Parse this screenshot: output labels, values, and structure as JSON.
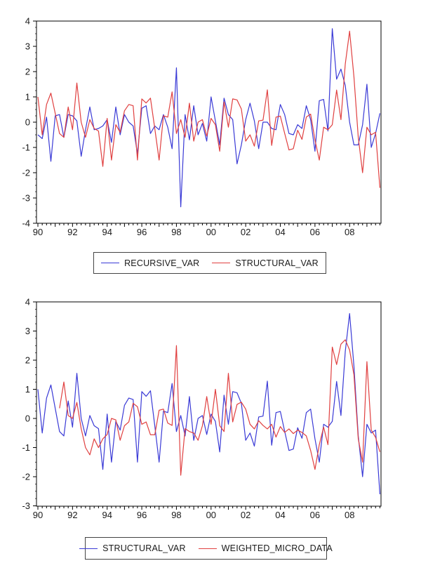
{
  "page": {
    "background": "#ffffff"
  },
  "colors": {
    "blue_series": "#3a3ad6",
    "red_series": "#e04040",
    "axis": "#000000",
    "text": "#1a1a1a"
  },
  "chart_data": [
    {
      "id": "top",
      "type": "line",
      "title": "",
      "xlabel": "",
      "ylabel": "",
      "x_start": "1990Q1",
      "x_end": "2009Q4",
      "frequency": "quarterly",
      "ylim": [
        -4,
        4
      ],
      "y_tick_labels": [
        "4",
        "3",
        "2",
        "1",
        "0",
        "-1",
        "-2",
        "-3",
        "-4"
      ],
      "x_tick_labels": [
        "90",
        "92",
        "94",
        "96",
        "98",
        "00",
        "02",
        "04",
        "06",
        "08"
      ],
      "grid": false,
      "legend_position": "bottom-center-boxed",
      "series": [
        {
          "name": "RECURSIVE_VAR",
          "color_key": "blue_series",
          "values": [
            -0.5,
            -0.65,
            0.2,
            -1.55,
            0.25,
            0.3,
            -0.6,
            0.3,
            0.25,
            0.05,
            -1.35,
            -0.3,
            0.6,
            -0.3,
            -0.25,
            -0.15,
            0.1,
            -0.8,
            0.6,
            -0.5,
            0.3,
            0.0,
            -0.15,
            -1.25,
            0.55,
            0.65,
            -0.45,
            -0.15,
            -0.3,
            0.3,
            -0.2,
            -1.05,
            2.15,
            -3.35,
            0.3,
            -0.7,
            0.65,
            -0.5,
            -0.05,
            -0.75,
            1.0,
            0.05,
            -0.9,
            0.95,
            0.3,
            0.1,
            -1.65,
            -0.9,
            0.1,
            0.75,
            0.05,
            -1.05,
            0.0,
            0.0,
            -0.25,
            -0.3,
            0.7,
            0.3,
            -0.45,
            -0.5,
            -0.1,
            -0.25,
            0.65,
            0.1,
            -1.15,
            0.85,
            0.9,
            -0.35,
            3.7,
            1.7,
            2.1,
            1.45,
            0.0,
            -0.9,
            -0.9,
            -0.1,
            1.5,
            -1.0,
            -0.45,
            0.35
          ]
        },
        {
          "name": "STRUCTURAL_VAR",
          "color_key": "red_series",
          "values": [
            1.0,
            -0.5,
            0.7,
            1.15,
            0.35,
            -0.45,
            -0.6,
            0.6,
            -0.3,
            1.55,
            0.0,
            -0.6,
            0.1,
            -0.25,
            -0.35,
            -1.75,
            0.15,
            -1.5,
            -0.1,
            -0.4,
            0.45,
            0.7,
            0.65,
            -1.5,
            0.92,
            0.76,
            0.95,
            -0.25,
            -1.5,
            0.25,
            0.2,
            1.2,
            -0.45,
            0.1,
            -0.6,
            0.75,
            -0.75,
            0.0,
            0.1,
            -0.55,
            0.15,
            -0.1,
            -1.15,
            0.8,
            -0.2,
            0.92,
            0.88,
            0.52,
            -0.75,
            -0.5,
            -0.95,
            0.05,
            0.08,
            1.28,
            -0.92,
            0.2,
            0.24,
            -0.44,
            -1.1,
            -1.05,
            -0.32,
            -0.68,
            0.2,
            0.32,
            -0.7,
            -1.5,
            -0.2,
            -0.3,
            -0.1,
            1.27,
            0.1,
            2.3,
            3.6,
            1.8,
            -0.6,
            -2.0,
            -0.2,
            -0.5,
            -0.4,
            -2.6
          ]
        }
      ]
    },
    {
      "id": "bottom",
      "type": "line",
      "title": "",
      "xlabel": "",
      "ylabel": "",
      "x_start": "1990Q1",
      "x_end": "2009Q4",
      "frequency": "quarterly",
      "ylim": [
        -3,
        4
      ],
      "y_tick_labels": [
        "4",
        "3",
        "2",
        "1",
        "0",
        "-1",
        "-2",
        "-3"
      ],
      "x_tick_labels": [
        "90",
        "92",
        "94",
        "96",
        "98",
        "00",
        "02",
        "04",
        "06",
        "08"
      ],
      "grid": false,
      "legend_position": "bottom-center-boxed",
      "series": [
        {
          "name": "STRUCTURAL_VAR",
          "color_key": "blue_series",
          "values": [
            1.0,
            -0.5,
            0.7,
            1.15,
            0.35,
            -0.45,
            -0.6,
            0.6,
            -0.3,
            1.55,
            0.0,
            -0.6,
            0.1,
            -0.25,
            -0.35,
            -1.75,
            0.15,
            -1.5,
            -0.1,
            -0.4,
            0.45,
            0.7,
            0.65,
            -1.5,
            0.92,
            0.76,
            0.95,
            -0.25,
            -1.5,
            0.25,
            0.2,
            1.2,
            -0.45,
            0.1,
            -0.6,
            0.75,
            -0.75,
            0.0,
            0.1,
            -0.55,
            0.15,
            -0.1,
            -1.15,
            0.8,
            -0.2,
            0.92,
            0.88,
            0.52,
            -0.75,
            -0.5,
            -0.95,
            0.05,
            0.08,
            1.28,
            -0.92,
            0.2,
            0.24,
            -0.44,
            -1.1,
            -1.05,
            -0.32,
            -0.68,
            0.2,
            0.32,
            -0.7,
            -1.5,
            -0.2,
            -0.3,
            -0.1,
            1.27,
            0.1,
            2.3,
            3.6,
            1.8,
            -0.6,
            -2.0,
            -0.2,
            -0.5,
            -0.4,
            -2.6
          ]
        },
        {
          "name": "WEIGHTED_MICRO_DATA",
          "color_key": "red_series",
          "values": [
            null,
            null,
            null,
            null,
            null,
            0.35,
            1.25,
            0.1,
            0.0,
            0.55,
            -0.35,
            -1.0,
            -1.25,
            -0.7,
            -1.0,
            -0.7,
            -0.55,
            0.0,
            -0.05,
            -0.75,
            -0.25,
            -0.12,
            0.52,
            0.4,
            -0.2,
            -0.12,
            -0.56,
            -0.56,
            0.28,
            0.32,
            -0.16,
            -0.24,
            2.5,
            -1.95,
            -0.35,
            -0.45,
            -0.5,
            -0.75,
            -0.25,
            0.75,
            -0.2,
            1.0,
            -0.25,
            -0.45,
            1.55,
            -0.12,
            0.48,
            0.56,
            0.32,
            -0.2,
            -0.36,
            -0.08,
            -0.24,
            -0.36,
            -0.2,
            -0.64,
            -0.28,
            -0.48,
            -0.36,
            -0.52,
            -0.4,
            -0.48,
            -0.6,
            -1.1,
            -1.75,
            -0.9,
            -0.3,
            -0.9,
            2.45,
            1.85,
            2.55,
            2.7,
            2.35,
            1.5,
            -0.7,
            -1.5,
            1.95,
            -0.4,
            -0.65,
            -1.15
          ]
        }
      ]
    }
  ]
}
